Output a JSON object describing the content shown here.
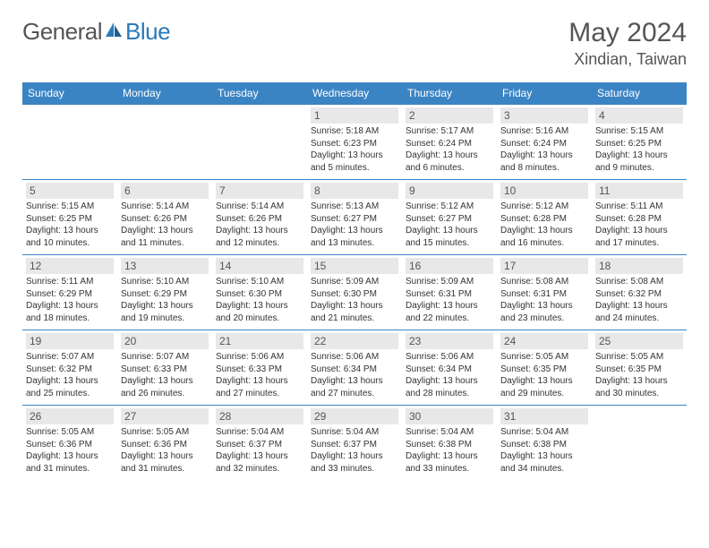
{
  "brand": {
    "part1": "General",
    "part2": "Blue"
  },
  "title": "May 2024",
  "location": "Xindian, Taiwan",
  "colors": {
    "header_bg": "#3b84c4",
    "header_text": "#ffffff",
    "daynum_bg": "#e8e8e8",
    "text": "#555555",
    "border": "#3b84c4"
  },
  "dow": [
    "Sunday",
    "Monday",
    "Tuesday",
    "Wednesday",
    "Thursday",
    "Friday",
    "Saturday"
  ],
  "weeks": [
    [
      {
        "n": "",
        "sr": "",
        "ss": "",
        "dl": ""
      },
      {
        "n": "",
        "sr": "",
        "ss": "",
        "dl": ""
      },
      {
        "n": "",
        "sr": "",
        "ss": "",
        "dl": ""
      },
      {
        "n": "1",
        "sr": "5:18 AM",
        "ss": "6:23 PM",
        "dl": "13 hours and 5 minutes."
      },
      {
        "n": "2",
        "sr": "5:17 AM",
        "ss": "6:24 PM",
        "dl": "13 hours and 6 minutes."
      },
      {
        "n": "3",
        "sr": "5:16 AM",
        "ss": "6:24 PM",
        "dl": "13 hours and 8 minutes."
      },
      {
        "n": "4",
        "sr": "5:15 AM",
        "ss": "6:25 PM",
        "dl": "13 hours and 9 minutes."
      }
    ],
    [
      {
        "n": "5",
        "sr": "5:15 AM",
        "ss": "6:25 PM",
        "dl": "13 hours and 10 minutes."
      },
      {
        "n": "6",
        "sr": "5:14 AM",
        "ss": "6:26 PM",
        "dl": "13 hours and 11 minutes."
      },
      {
        "n": "7",
        "sr": "5:14 AM",
        "ss": "6:26 PM",
        "dl": "13 hours and 12 minutes."
      },
      {
        "n": "8",
        "sr": "5:13 AM",
        "ss": "6:27 PM",
        "dl": "13 hours and 13 minutes."
      },
      {
        "n": "9",
        "sr": "5:12 AM",
        "ss": "6:27 PM",
        "dl": "13 hours and 15 minutes."
      },
      {
        "n": "10",
        "sr": "5:12 AM",
        "ss": "6:28 PM",
        "dl": "13 hours and 16 minutes."
      },
      {
        "n": "11",
        "sr": "5:11 AM",
        "ss": "6:28 PM",
        "dl": "13 hours and 17 minutes."
      }
    ],
    [
      {
        "n": "12",
        "sr": "5:11 AM",
        "ss": "6:29 PM",
        "dl": "13 hours and 18 minutes."
      },
      {
        "n": "13",
        "sr": "5:10 AM",
        "ss": "6:29 PM",
        "dl": "13 hours and 19 minutes."
      },
      {
        "n": "14",
        "sr": "5:10 AM",
        "ss": "6:30 PM",
        "dl": "13 hours and 20 minutes."
      },
      {
        "n": "15",
        "sr": "5:09 AM",
        "ss": "6:30 PM",
        "dl": "13 hours and 21 minutes."
      },
      {
        "n": "16",
        "sr": "5:09 AM",
        "ss": "6:31 PM",
        "dl": "13 hours and 22 minutes."
      },
      {
        "n": "17",
        "sr": "5:08 AM",
        "ss": "6:31 PM",
        "dl": "13 hours and 23 minutes."
      },
      {
        "n": "18",
        "sr": "5:08 AM",
        "ss": "6:32 PM",
        "dl": "13 hours and 24 minutes."
      }
    ],
    [
      {
        "n": "19",
        "sr": "5:07 AM",
        "ss": "6:32 PM",
        "dl": "13 hours and 25 minutes."
      },
      {
        "n": "20",
        "sr": "5:07 AM",
        "ss": "6:33 PM",
        "dl": "13 hours and 26 minutes."
      },
      {
        "n": "21",
        "sr": "5:06 AM",
        "ss": "6:33 PM",
        "dl": "13 hours and 27 minutes."
      },
      {
        "n": "22",
        "sr": "5:06 AM",
        "ss": "6:34 PM",
        "dl": "13 hours and 27 minutes."
      },
      {
        "n": "23",
        "sr": "5:06 AM",
        "ss": "6:34 PM",
        "dl": "13 hours and 28 minutes."
      },
      {
        "n": "24",
        "sr": "5:05 AM",
        "ss": "6:35 PM",
        "dl": "13 hours and 29 minutes."
      },
      {
        "n": "25",
        "sr": "5:05 AM",
        "ss": "6:35 PM",
        "dl": "13 hours and 30 minutes."
      }
    ],
    [
      {
        "n": "26",
        "sr": "5:05 AM",
        "ss": "6:36 PM",
        "dl": "13 hours and 31 minutes."
      },
      {
        "n": "27",
        "sr": "5:05 AM",
        "ss": "6:36 PM",
        "dl": "13 hours and 31 minutes."
      },
      {
        "n": "28",
        "sr": "5:04 AM",
        "ss": "6:37 PM",
        "dl": "13 hours and 32 minutes."
      },
      {
        "n": "29",
        "sr": "5:04 AM",
        "ss": "6:37 PM",
        "dl": "13 hours and 33 minutes."
      },
      {
        "n": "30",
        "sr": "5:04 AM",
        "ss": "6:38 PM",
        "dl": "13 hours and 33 minutes."
      },
      {
        "n": "31",
        "sr": "5:04 AM",
        "ss": "6:38 PM",
        "dl": "13 hours and 34 minutes."
      },
      {
        "n": "",
        "sr": "",
        "ss": "",
        "dl": ""
      }
    ]
  ],
  "labels": {
    "sunrise": "Sunrise: ",
    "sunset": "Sunset: ",
    "daylight": "Daylight: "
  }
}
